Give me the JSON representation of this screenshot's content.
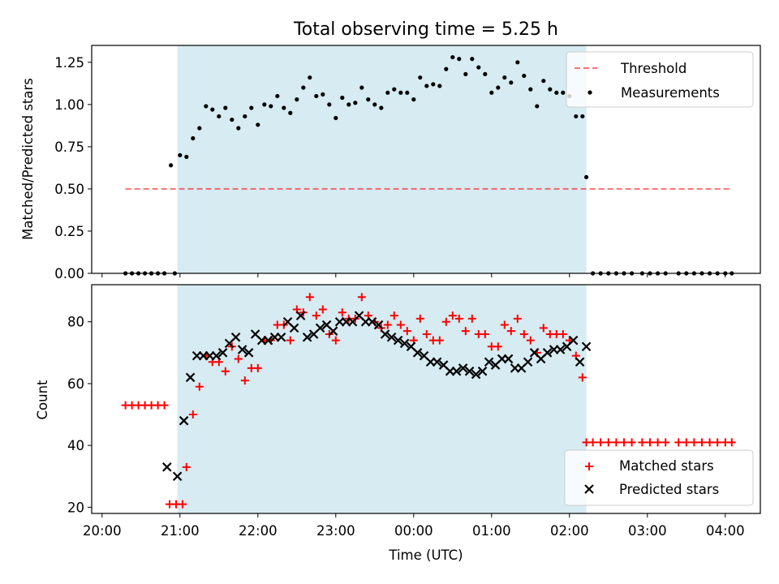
{
  "chart_data": [
    {
      "type": "scatter",
      "title": "Total observing time = 5.25 h",
      "ylabel": "Matched/Predicted stars",
      "xlabel": "",
      "ylim": [
        0,
        1.35
      ],
      "yticks": [
        "0.00",
        "0.25",
        "0.50",
        "0.75",
        "1.00",
        "1.25"
      ],
      "observing_window": [
        "20:58",
        "02:13"
      ],
      "legend_position": "top-right",
      "colors": {
        "window": "#add8e6",
        "threshold": "#ff0000",
        "measurements": "#000000"
      },
      "series": [
        {
          "name": "Threshold",
          "kind": "dashed-line",
          "x": [
            "20:18",
            "04:05"
          ],
          "y": [
            0.5,
            0.5
          ]
        },
        {
          "name": "Measurements",
          "kind": "dots",
          "points": [
            [
              "20:18",
              0.0
            ],
            [
              "20:23",
              0.0
            ],
            [
              "20:28",
              0.0
            ],
            [
              "20:33",
              0.0
            ],
            [
              "20:38",
              0.0
            ],
            [
              "20:43",
              0.0
            ],
            [
              "20:48",
              0.0
            ],
            [
              "20:53",
              0.64
            ],
            [
              "20:56",
              0.0
            ],
            [
              "21:00",
              0.7
            ],
            [
              "21:05",
              0.69
            ],
            [
              "21:10",
              0.8
            ],
            [
              "21:15",
              0.86
            ],
            [
              "21:20",
              0.99
            ],
            [
              "21:25",
              0.97
            ],
            [
              "21:30",
              0.93
            ],
            [
              "21:35",
              0.98
            ],
            [
              "21:40",
              0.91
            ],
            [
              "21:45",
              0.86
            ],
            [
              "21:50",
              0.93
            ],
            [
              "21:55",
              0.98
            ],
            [
              "22:00",
              0.88
            ],
            [
              "22:05",
              1.0
            ],
            [
              "22:10",
              0.99
            ],
            [
              "22:15",
              1.05
            ],
            [
              "22:20",
              0.98
            ],
            [
              "22:25",
              0.95
            ],
            [
              "22:30",
              1.03
            ],
            [
              "22:35",
              1.1
            ],
            [
              "22:40",
              1.16
            ],
            [
              "22:45",
              1.05
            ],
            [
              "22:50",
              1.06
            ],
            [
              "22:55",
              1.0
            ],
            [
              "23:00",
              0.92
            ],
            [
              "23:05",
              1.04
            ],
            [
              "23:10",
              1.0
            ],
            [
              "23:15",
              1.01
            ],
            [
              "23:20",
              1.1
            ],
            [
              "23:25",
              1.03
            ],
            [
              "23:30",
              1.0
            ],
            [
              "23:35",
              0.98
            ],
            [
              "23:40",
              1.07
            ],
            [
              "23:45",
              1.09
            ],
            [
              "23:50",
              1.07
            ],
            [
              "23:55",
              1.07
            ],
            [
              "00:00",
              1.03
            ],
            [
              "00:05",
              1.16
            ],
            [
              "00:10",
              1.11
            ],
            [
              "00:15",
              1.12
            ],
            [
              "00:20",
              1.11
            ],
            [
              "00:25",
              1.21
            ],
            [
              "00:30",
              1.28
            ],
            [
              "00:35",
              1.27
            ],
            [
              "00:40",
              1.18
            ],
            [
              "00:45",
              1.27
            ],
            [
              "00:50",
              1.22
            ],
            [
              "00:55",
              1.18
            ],
            [
              "01:00",
              1.07
            ],
            [
              "01:05",
              1.1
            ],
            [
              "01:10",
              1.16
            ],
            [
              "01:15",
              1.13
            ],
            [
              "01:20",
              1.25
            ],
            [
              "01:25",
              1.17
            ],
            [
              "01:30",
              1.09
            ],
            [
              "01:35",
              0.99
            ],
            [
              "01:40",
              1.14
            ],
            [
              "01:45",
              1.09
            ],
            [
              "01:50",
              1.07
            ],
            [
              "01:55",
              1.07
            ],
            [
              "02:00",
              1.05
            ],
            [
              "02:05",
              0.93
            ],
            [
              "02:10",
              0.93
            ],
            [
              "02:13",
              0.57
            ],
            [
              "02:18",
              0.0
            ],
            [
              "02:24",
              0.0
            ],
            [
              "02:30",
              0.0
            ],
            [
              "02:36",
              0.0
            ],
            [
              "02:42",
              0.0
            ],
            [
              "02:48",
              0.0
            ],
            [
              "02:56",
              0.0
            ],
            [
              "03:02",
              0.0
            ],
            [
              "03:08",
              0.0
            ],
            [
              "03:14",
              0.0
            ],
            [
              "03:24",
              0.0
            ],
            [
              "03:30",
              0.0
            ],
            [
              "03:36",
              0.0
            ],
            [
              "03:42",
              0.0
            ],
            [
              "03:48",
              0.0
            ],
            [
              "03:54",
              0.0
            ],
            [
              "04:00",
              0.0
            ],
            [
              "04:05",
              0.0
            ]
          ]
        }
      ]
    },
    {
      "type": "scatter",
      "title": "",
      "ylabel": "Count",
      "xlabel": "Time (UTC)",
      "ylim": [
        18,
        92
      ],
      "yticks": [
        "20",
        "40",
        "60",
        "80"
      ],
      "xticks": [
        "20:00",
        "21:00",
        "22:00",
        "23:00",
        "00:00",
        "01:00",
        "02:00",
        "03:00",
        "04:00"
      ],
      "observing_window": [
        "20:58",
        "02:13"
      ],
      "legend_position": "bottom-right",
      "colors": {
        "window": "#add8e6",
        "matched": "#ff0000",
        "predicted": "#000000"
      },
      "series": [
        {
          "name": "Matched stars",
          "marker": "plus",
          "points": [
            [
              "20:18",
              53
            ],
            [
              "20:23",
              53
            ],
            [
              "20:28",
              53
            ],
            [
              "20:33",
              53
            ],
            [
              "20:38",
              53
            ],
            [
              "20:43",
              53
            ],
            [
              "20:48",
              53
            ],
            [
              "20:52",
              21
            ],
            [
              "20:57",
              21
            ],
            [
              "21:02",
              21
            ],
            [
              "21:05",
              33
            ],
            [
              "21:10",
              50
            ],
            [
              "21:15",
              59
            ],
            [
              "21:20",
              69
            ],
            [
              "21:25",
              67
            ],
            [
              "21:30",
              67
            ],
            [
              "21:35",
              64
            ],
            [
              "21:40",
              72
            ],
            [
              "21:45",
              68
            ],
            [
              "21:50",
              61
            ],
            [
              "21:55",
              65
            ],
            [
              "22:00",
              65
            ],
            [
              "22:05",
              74
            ],
            [
              "22:10",
              74
            ],
            [
              "22:15",
              79
            ],
            [
              "22:20",
              79
            ],
            [
              "22:25",
              74
            ],
            [
              "22:30",
              84
            ],
            [
              "22:35",
              83
            ],
            [
              "22:40",
              88
            ],
            [
              "22:45",
              82
            ],
            [
              "22:50",
              84
            ],
            [
              "22:55",
              76
            ],
            [
              "23:00",
              74
            ],
            [
              "23:05",
              83
            ],
            [
              "23:10",
              81
            ],
            [
              "23:15",
              81
            ],
            [
              "23:20",
              88
            ],
            [
              "23:25",
              82
            ],
            [
              "23:30",
              80
            ],
            [
              "23:35",
              78
            ],
            [
              "23:40",
              79
            ],
            [
              "23:45",
              82
            ],
            [
              "23:50",
              79
            ],
            [
              "23:55",
              77
            ],
            [
              "00:00",
              74
            ],
            [
              "00:05",
              81
            ],
            [
              "00:10",
              76
            ],
            [
              "00:15",
              74
            ],
            [
              "00:20",
              74
            ],
            [
              "00:25",
              80
            ],
            [
              "00:30",
              82
            ],
            [
              "00:35",
              81
            ],
            [
              "00:40",
              77
            ],
            [
              "00:45",
              81
            ],
            [
              "00:50",
              76
            ],
            [
              "00:55",
              76
            ],
            [
              "01:00",
              72
            ],
            [
              "01:05",
              72
            ],
            [
              "01:10",
              79
            ],
            [
              "01:15",
              77
            ],
            [
              "01:20",
              81
            ],
            [
              "01:25",
              76
            ],
            [
              "01:30",
              74
            ],
            [
              "01:35",
              70
            ],
            [
              "01:40",
              78
            ],
            [
              "01:45",
              76
            ],
            [
              "01:50",
              76
            ],
            [
              "01:55",
              76
            ],
            [
              "02:00",
              74
            ],
            [
              "02:05",
              69
            ],
            [
              "02:10",
              62
            ],
            [
              "02:13",
              41
            ],
            [
              "02:18",
              41
            ],
            [
              "02:24",
              41
            ],
            [
              "02:30",
              41
            ],
            [
              "02:36",
              41
            ],
            [
              "02:42",
              41
            ],
            [
              "02:48",
              41
            ],
            [
              "02:56",
              41
            ],
            [
              "03:02",
              41
            ],
            [
              "03:08",
              41
            ],
            [
              "03:14",
              41
            ],
            [
              "03:24",
              41
            ],
            [
              "03:30",
              41
            ],
            [
              "03:36",
              41
            ],
            [
              "03:42",
              41
            ],
            [
              "03:48",
              41
            ],
            [
              "03:54",
              41
            ],
            [
              "04:00",
              41
            ],
            [
              "04:05",
              41
            ]
          ]
        },
        {
          "name": "Predicted stars",
          "marker": "x",
          "points": [
            [
              "20:50",
              33
            ],
            [
              "20:58",
              30
            ],
            [
              "21:03",
              48
            ],
            [
              "21:08",
              62
            ],
            [
              "21:13",
              69
            ],
            [
              "21:18",
              69
            ],
            [
              "21:23",
              69
            ],
            [
              "21:28",
              69
            ],
            [
              "21:33",
              70
            ],
            [
              "21:38",
              73
            ],
            [
              "21:43",
              75
            ],
            [
              "21:48",
              71
            ],
            [
              "21:53",
              70
            ],
            [
              "21:58",
              76
            ],
            [
              "22:03",
              74
            ],
            [
              "22:08",
              74
            ],
            [
              "22:13",
              75
            ],
            [
              "22:18",
              75
            ],
            [
              "22:23",
              80
            ],
            [
              "22:28",
              78
            ],
            [
              "22:33",
              82
            ],
            [
              "22:38",
              75
            ],
            [
              "22:43",
              76
            ],
            [
              "22:48",
              78
            ],
            [
              "22:53",
              79
            ],
            [
              "22:58",
              77
            ],
            [
              "23:03",
              80
            ],
            [
              "23:08",
              80
            ],
            [
              "23:13",
              80
            ],
            [
              "23:18",
              82
            ],
            [
              "23:23",
              80
            ],
            [
              "23:28",
              80
            ],
            [
              "23:33",
              79
            ],
            [
              "23:38",
              76
            ],
            [
              "23:43",
              75
            ],
            [
              "23:48",
              74
            ],
            [
              "23:53",
              73
            ],
            [
              "23:58",
              72
            ],
            [
              "00:03",
              70
            ],
            [
              "00:08",
              69
            ],
            [
              "00:13",
              67
            ],
            [
              "00:18",
              67
            ],
            [
              "00:23",
              66
            ],
            [
              "00:28",
              64
            ],
            [
              "00:33",
              64
            ],
            [
              "00:38",
              65
            ],
            [
              "00:43",
              64
            ],
            [
              "00:48",
              63
            ],
            [
              "00:53",
              64
            ],
            [
              "00:58",
              67
            ],
            [
              "01:03",
              66
            ],
            [
              "01:08",
              68
            ],
            [
              "01:13",
              68
            ],
            [
              "01:18",
              65
            ],
            [
              "01:23",
              65
            ],
            [
              "01:28",
              67
            ],
            [
              "01:33",
              70
            ],
            [
              "01:38",
              68
            ],
            [
              "01:43",
              70
            ],
            [
              "01:48",
              71
            ],
            [
              "01:53",
              71
            ],
            [
              "01:58",
              72
            ],
            [
              "02:03",
              74
            ],
            [
              "02:08",
              67
            ],
            [
              "02:13",
              72
            ]
          ]
        }
      ]
    }
  ]
}
